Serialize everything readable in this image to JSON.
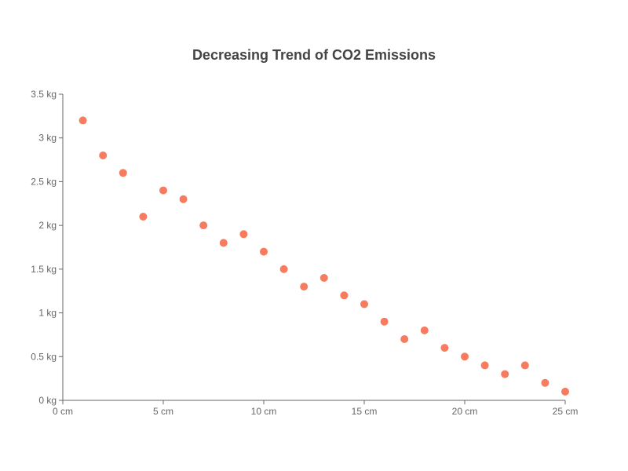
{
  "chart_data": {
    "type": "scatter",
    "title": "Decreasing Trend of CO2 Emissions",
    "xlabel": "",
    "ylabel": "",
    "xlim": [
      0,
      25
    ],
    "ylim": [
      0,
      3.5
    ],
    "x_ticks": [
      0,
      5,
      10,
      15,
      20,
      25
    ],
    "y_ticks": [
      0,
      0.5,
      1,
      1.5,
      2,
      2.5,
      3,
      3.5
    ],
    "x_unit": "cm",
    "y_unit": "kg",
    "grid": false,
    "legend": "none",
    "color": "#f77b5e",
    "x": [
      1,
      2,
      3,
      4,
      5,
      6,
      7,
      8,
      9,
      10,
      11,
      12,
      13,
      14,
      15,
      16,
      17,
      18,
      19,
      20,
      21,
      22,
      23,
      24,
      25
    ],
    "y": [
      3.2,
      2.8,
      2.6,
      2.1,
      2.4,
      2.3,
      2.0,
      1.8,
      1.9,
      1.7,
      1.5,
      1.3,
      1.4,
      1.2,
      1.1,
      0.9,
      0.7,
      0.8,
      0.6,
      0.5,
      0.4,
      0.3,
      0.4,
      0.2,
      0.1
    ]
  }
}
